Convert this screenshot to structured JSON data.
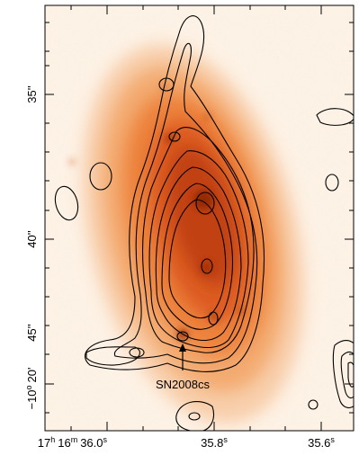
{
  "image": {
    "description_hidden": "",
    "colors": {
      "background": "#fbe8d2",
      "core": "#c8360c",
      "halo": "#f49442",
      "contour": "#000000",
      "frame": "#000000"
    }
  },
  "axes": {
    "y_ticks": [
      {
        "deg_prefix": "",
        "main": "35",
        "unit": "''"
      },
      {
        "deg_prefix": "",
        "main": "40",
        "unit": "''"
      },
      {
        "deg_prefix": "",
        "main": "45",
        "unit": "''"
      },
      {
        "deg_prefix": "−10",
        "deg_unit": "o",
        "arcmin": "20",
        "arcmin_unit": "'",
        "main": "",
        "unit": ""
      }
    ],
    "y_tick_texts": [
      "35''",
      "40''",
      "45''",
      "−10° 20' 45''"
    ],
    "x_tick_texts": [
      "17h 16m 36.0s",
      "35.8s",
      "35.6s"
    ],
    "x_ticks": [
      {
        "h": "17",
        "h_unit": "h",
        "m": "16",
        "m_unit": "m",
        "s": "36.0",
        "s_unit": "s"
      },
      {
        "s": "35.8",
        "s_unit": "s"
      },
      {
        "s": "35.6",
        "s_unit": "s"
      }
    ]
  },
  "annotation": {
    "label": "SN2008cs"
  }
}
